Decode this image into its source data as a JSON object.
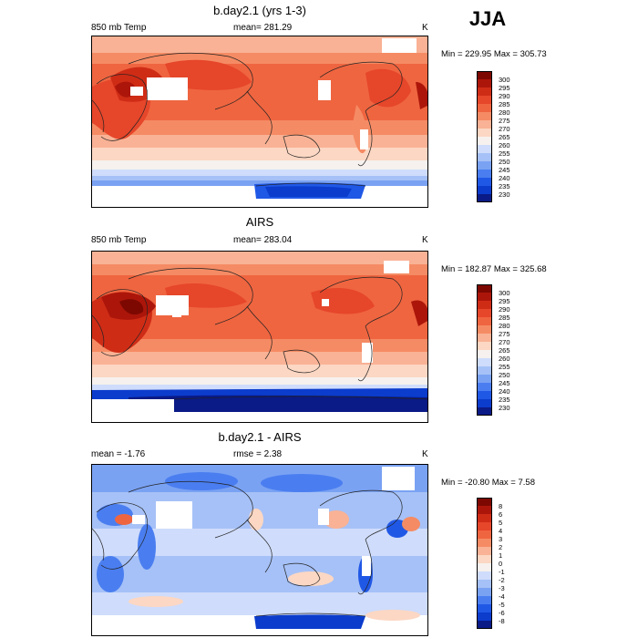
{
  "season": "JJA",
  "colors": {
    "temp": [
      "#0a1a86",
      "#0b3ccc",
      "#2058e6",
      "#4a7ef0",
      "#7aa2f3",
      "#a6c1f7",
      "#cfdcfb",
      "#f6f1ee",
      "#fcd7c3",
      "#f9b295",
      "#f58b64",
      "#ef6540",
      "#e6462a",
      "#cf2c16",
      "#ac160a",
      "#7d0802"
    ],
    "diff": [
      "#0a1a86",
      "#0b3ccc",
      "#2058e6",
      "#4a7ef0",
      "#7aa2f3",
      "#a6c1f7",
      "#cfdcfb",
      "#f6f1ee",
      "#fcd7c3",
      "#f9b295",
      "#f58b64",
      "#ef6540",
      "#e6462a",
      "#cf2c16",
      "#ac160a",
      "#7d0802"
    ]
  },
  "panels": [
    {
      "title": "b.day2.1 (yrs 1-3)",
      "left_label": "850 mb Temp",
      "mid_label": "mean= 281.29",
      "right_label": "K",
      "minmax": "Min = 229.95 Max = 305.73",
      "colorbar_labels": [
        "300",
        "295",
        "290",
        "285",
        "280",
        "275",
        "270",
        "265",
        "260",
        "255",
        "250",
        "245",
        "240",
        "235",
        "230"
      ]
    },
    {
      "title": "AIRS",
      "left_label": "850 mb Temp",
      "mid_label": "mean= 283.04",
      "right_label": "K",
      "minmax": "Min = 182.87 Max = 325.68",
      "colorbar_labels": [
        "300",
        "295",
        "290",
        "285",
        "280",
        "275",
        "270",
        "265",
        "260",
        "255",
        "250",
        "245",
        "240",
        "235",
        "230"
      ]
    },
    {
      "title": "b.day2.1 - AIRS",
      "left_label": "mean =  -1.76",
      "mid_label": "rmse =  2.38",
      "right_label": "K",
      "minmax": "Min = -20.80 Max =   7.58",
      "colorbar_labels": [
        "8",
        "6",
        "5",
        "4",
        "3",
        "2",
        "1",
        "0",
        "-1",
        "-2",
        "-3",
        "-4",
        "-5",
        "-6",
        "-8"
      ]
    }
  ]
}
